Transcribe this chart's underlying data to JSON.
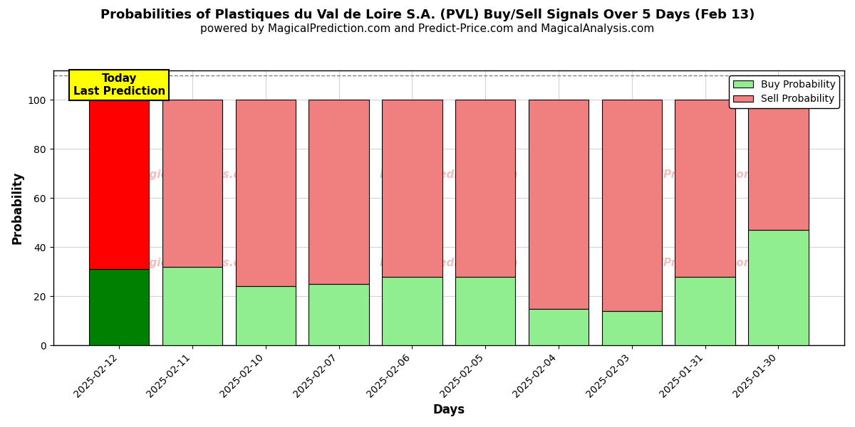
{
  "title": "Probabilities of Plastiques du Val de Loire S.A. (PVL) Buy/Sell Signals Over 5 Days (Feb 13)",
  "subtitle": "powered by MagicalPrediction.com and Predict-Price.com and MagicalAnalysis.com",
  "xlabel": "Days",
  "ylabel": "Probability",
  "dates": [
    "2025-02-12",
    "2025-02-11",
    "2025-02-10",
    "2025-02-07",
    "2025-02-06",
    "2025-02-05",
    "2025-02-04",
    "2025-02-03",
    "2025-01-31",
    "2025-01-30"
  ],
  "buy_values": [
    31,
    32,
    24,
    25,
    28,
    28,
    15,
    14,
    28,
    47
  ],
  "sell_values": [
    69,
    68,
    76,
    75,
    72,
    72,
    85,
    86,
    72,
    53
  ],
  "today_buy_color": "#008000",
  "today_sell_color": "#ff0000",
  "other_buy_color": "#90ee90",
  "other_sell_color": "#f08080",
  "bar_edge_color": "#000000",
  "annotation_text": "Today\nLast Prediction",
  "annotation_bg": "#ffff00",
  "ylim": [
    0,
    112
  ],
  "yticks": [
    0,
    20,
    40,
    60,
    80,
    100
  ],
  "dashed_line_y": 110,
  "legend_buy_label": "Buy Probability",
  "legend_sell_label": "Sell Probability",
  "watermark_color": "#e07070",
  "watermark_alpha": 0.45,
  "title_fontsize": 13,
  "subtitle_fontsize": 11,
  "axis_label_fontsize": 12,
  "tick_fontsize": 10
}
